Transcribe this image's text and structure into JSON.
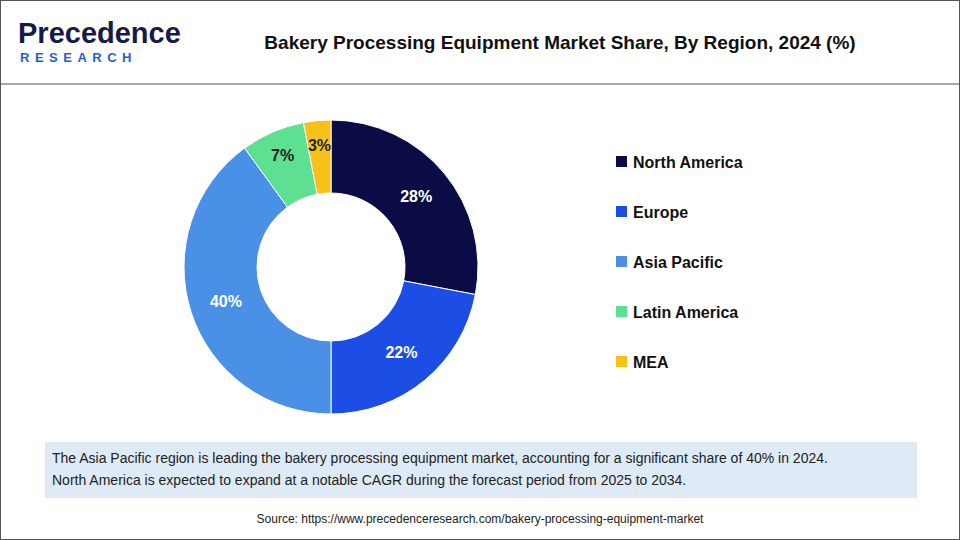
{
  "header": {
    "logo": [
      "Precedence",
      "RESEARCH"
    ]
  },
  "chart_data": {
    "type": "pie",
    "title": "Bakery Processing Equipment Market Share, By Region, 2024 (%)",
    "categories": [
      "North America",
      "Europe",
      "Asia Pacific",
      "Latin America",
      "MEA"
    ],
    "values": [
      28,
      22,
      40,
      7,
      3
    ],
    "value_labels": [
      "28%",
      "22%",
      "40%",
      "7%",
      "3%"
    ],
    "colors": [
      "#0b0b45",
      "#1c4ee6",
      "#4a90e6",
      "#5ee092",
      "#f6c21a"
    ],
    "data_labels": true,
    "legend": "right",
    "annotations": [
      "The Asia Pacific region is leading the bakery processing equipment market, accounting for a significant share of 40% in 2024.",
      "North America is expected to expand at a notable CAGR during the forecast period from 2025 to 2034."
    ],
    "source": "Source: https://www.precedenceresearch.com/bakery-processing-equipment-market"
  }
}
